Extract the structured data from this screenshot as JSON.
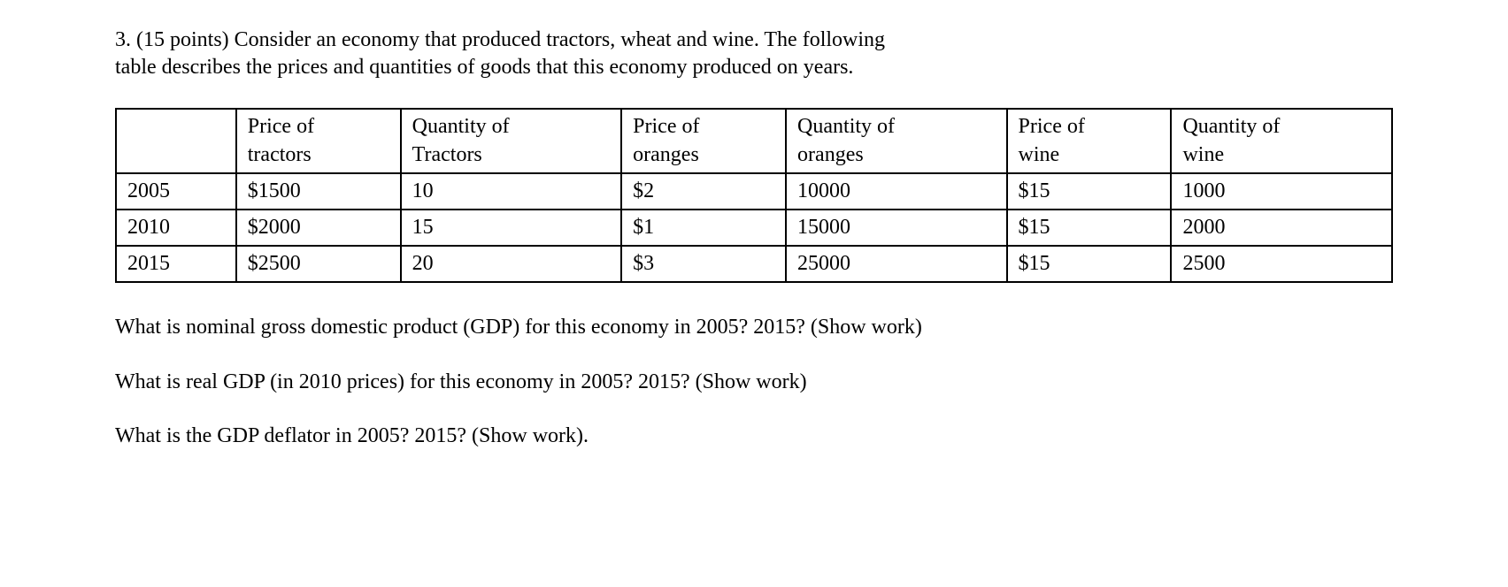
{
  "question_number": "3.",
  "points": "(15 points)",
  "intro_line1": "Consider an economy that produced tractors, wheat and wine.  The following",
  "intro_line2": "table describes the prices and quantities of goods that this economy produced on years.",
  "table": {
    "headers": {
      "col1_line1": "Price of",
      "col1_line2": "tractors",
      "col2_line1": "Quantity of",
      "col2_line2": "Tractors",
      "col3_line1": "Price of",
      "col3_line2": "oranges",
      "col4_line1": "Quantity of",
      "col4_line2": "oranges",
      "col5_line1": "Price of",
      "col5_line2": "wine",
      "col6_line1": "Quantity of",
      "col6_line2": "wine"
    },
    "rows": [
      {
        "year": "2005",
        "price_tractors": "$1500",
        "qty_tractors": "10",
        "price_oranges": "$2",
        "qty_oranges": "10000",
        "price_wine": "$15",
        "qty_wine": "1000"
      },
      {
        "year": "2010",
        "price_tractors": "$2000",
        "qty_tractors": "15",
        "price_oranges": "$1",
        "qty_oranges": "15000",
        "price_wine": "$15",
        "qty_wine": "2000"
      },
      {
        "year": "2015",
        "price_tractors": "$2500",
        "qty_tractors": "20",
        "price_oranges": "$3",
        "qty_oranges": "25000",
        "price_wine": "$15",
        "qty_wine": "2500"
      }
    ]
  },
  "question1": "What is nominal gross domestic product (GDP) for this economy in 2005? 2015? (Show work)",
  "question2": "What is real GDP (in 2010 prices) for this economy in 2005?  2015? (Show work)",
  "question3": "What is the GDP deflator in 2005?  2015? (Show work)."
}
